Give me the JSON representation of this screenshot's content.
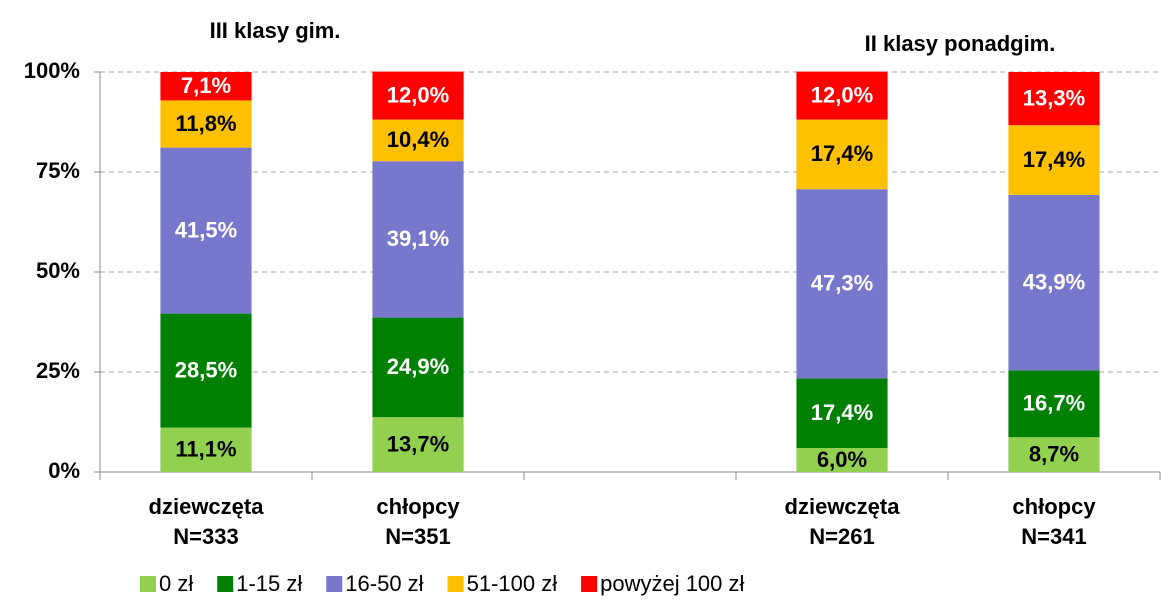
{
  "chart_data": {
    "type": "stacked_bar",
    "annotations": [
      {
        "text": "III klasy gim."
      },
      {
        "text": "II klasy ponadgim."
      }
    ],
    "categories": [
      "dziewczęta",
      "chłopcy",
      null,
      "dziewczęta",
      "chłopcy"
    ],
    "sample_sizes": [
      "N=333",
      "N=351",
      null,
      "N=261",
      "N=341"
    ],
    "series": [
      {
        "name": "0 zł",
        "color": "#92d050",
        "label_color": "#000000",
        "values": [
          11.1,
          13.7,
          null,
          6.0,
          8.7
        ],
        "value_labels": [
          "11,1%",
          "13,7%",
          null,
          "6,0%",
          "8,7%"
        ]
      },
      {
        "name": "1-15 zł",
        "color": "#008000",
        "label_color": "#ffffff",
        "values": [
          28.5,
          24.9,
          null,
          17.4,
          16.7
        ],
        "value_labels": [
          "28,5%",
          "24,9%",
          null,
          "17,4%",
          "16,7%"
        ]
      },
      {
        "name": "16-50 zł",
        "color": "#7777cc",
        "label_color": "#ffffff",
        "values": [
          41.5,
          39.1,
          null,
          47.3,
          43.9
        ],
        "value_labels": [
          "41,5%",
          "39,1%",
          null,
          "47,3%",
          "43,9%"
        ]
      },
      {
        "name": "51-100 zł",
        "color": "#ffc000",
        "label_color": "#000000",
        "values": [
          11.8,
          10.4,
          null,
          17.4,
          17.4
        ],
        "value_labels": [
          "11,8%",
          "10,4%",
          null,
          "17,4%",
          "17,4%"
        ]
      },
      {
        "name": "powyżej 100 zł",
        "color": "#ff0000",
        "label_color": "#ffffff",
        "values": [
          7.1,
          12.0,
          null,
          12.0,
          13.3
        ],
        "value_labels": [
          "7,1%",
          "12,0%",
          null,
          "12,0%",
          "13,3%"
        ]
      }
    ],
    "ylim": [
      0,
      100
    ],
    "yticks": [
      {
        "value": 0,
        "label": "0%"
      },
      {
        "value": 25,
        "label": "25%"
      },
      {
        "value": 50,
        "label": "50%"
      },
      {
        "value": 75,
        "label": "75%"
      },
      {
        "value": 100,
        "label": "100%"
      }
    ],
    "grid": true,
    "legend": "bottom"
  }
}
